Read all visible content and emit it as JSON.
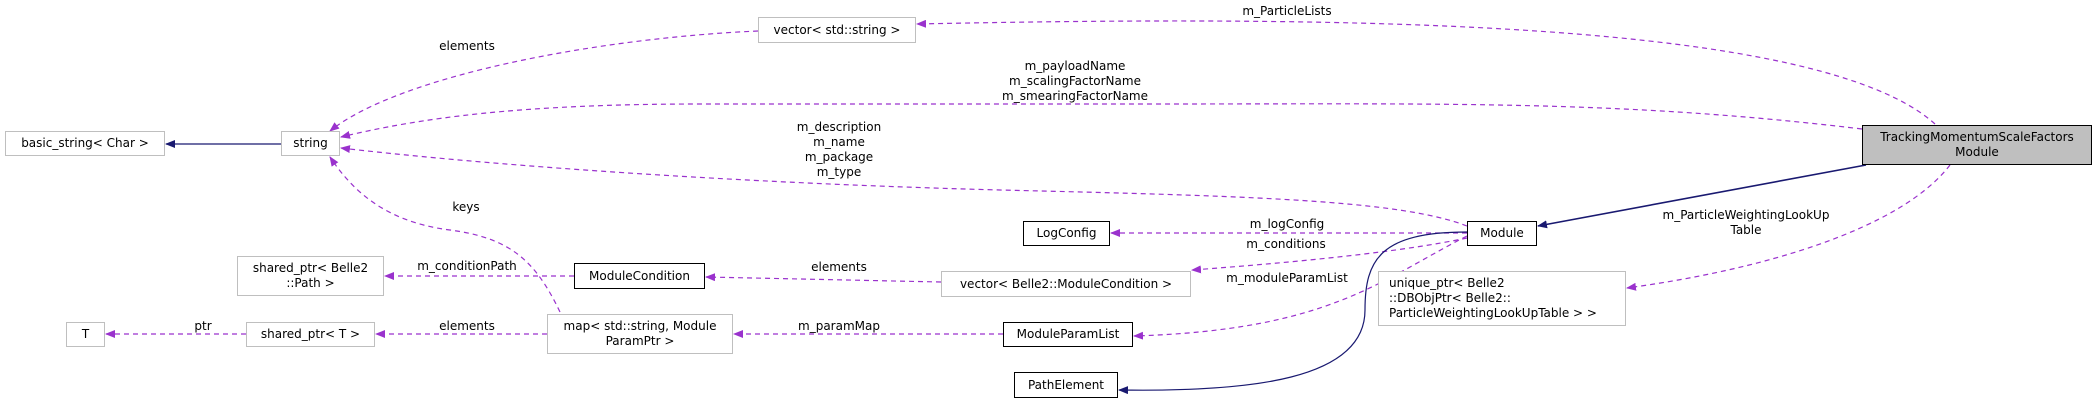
{
  "colors": {
    "member_edge": "#9a32cd",
    "inherit_edge": "#191970",
    "main_node_fill": "#bfbfbf",
    "undocumented_border": "#bfbfbf"
  },
  "nodes": {
    "main": [
      "TrackingMomentumScaleFactors",
      "Module"
    ],
    "basic_string": "basic_string< Char >",
    "string": "string",
    "vector_string": "vector< std::string >",
    "module": "Module",
    "logconfig": "LogConfig",
    "module_condition": "ModuleCondition",
    "vector_module_condition": "vector< Belle2::ModuleCondition >",
    "shared_ptr_path": [
      "shared_ptr< Belle2",
      "::Path >"
    ],
    "t": "T",
    "shared_ptr_t": "shared_ptr< T >",
    "map": [
      "map< std::string, Module",
      "ParamPtr >"
    ],
    "module_param_list": "ModuleParamList",
    "unique_ptr": [
      "unique_ptr< Belle2",
      "::DBObjPtr< Belle2::",
      "ParticleWeightingLookUpTable > >"
    ],
    "path_element": "PathElement"
  },
  "edge_labels": {
    "particle_lists": "m_ParticleLists",
    "vector_elements": "elements",
    "payload": [
      "m_payloadName",
      "m_scalingFactorName",
      "m_smearingFactorName"
    ],
    "description": [
      "m_description",
      "m_name",
      "m_package",
      "m_type"
    ],
    "keys": "keys",
    "log_config": "m_logConfig",
    "conditions": "m_conditions",
    "module_param_list": "m_moduleParamList",
    "weighting": [
      "m_ParticleWeightingLookUp",
      "Table"
    ],
    "condition_path": "m_conditionPath",
    "condition_elements": "elements",
    "map_elements": "elements",
    "ptr": "ptr",
    "param_map": "m_paramMap"
  }
}
